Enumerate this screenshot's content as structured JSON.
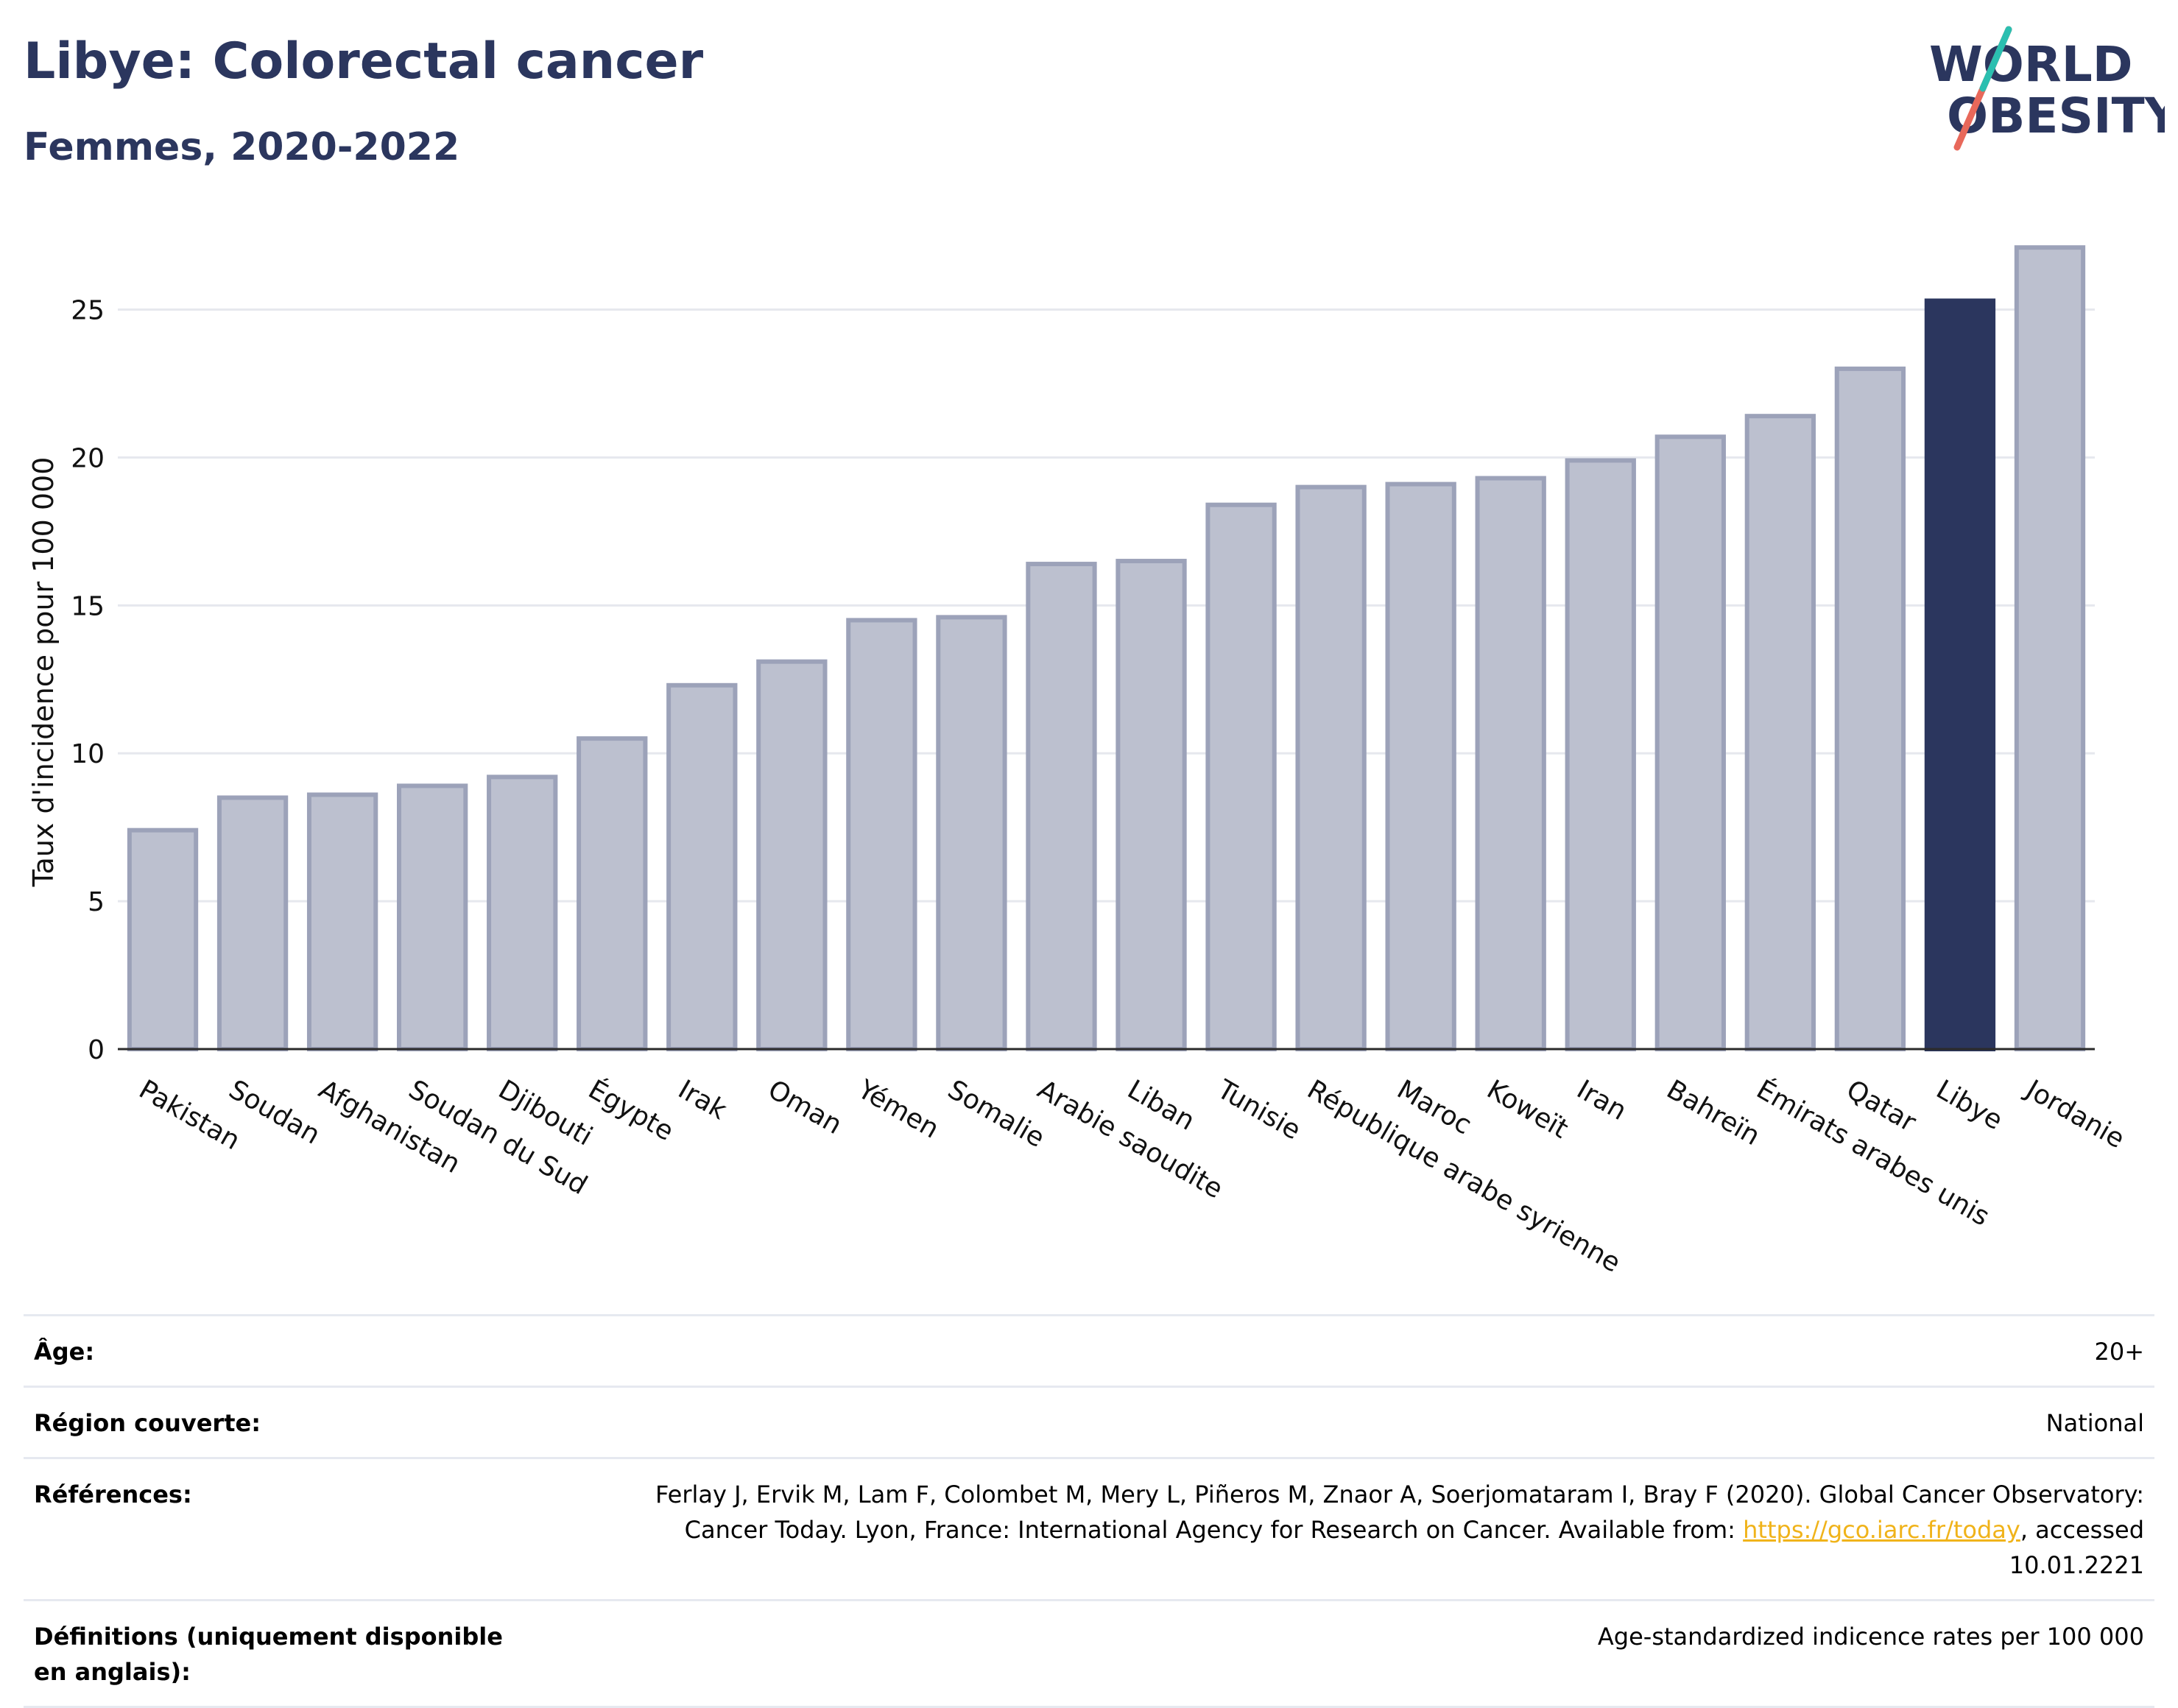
{
  "header": {
    "title": "Libye: Colorectal cancer",
    "subtitle": "Femmes, 2020-2022",
    "logo_line1": "WORLD",
    "logo_line2": "OBESITY"
  },
  "colors": {
    "title": "#2b365e",
    "bar": "#bcc0cf",
    "bar_border": "#9ca2b9",
    "highlight": "#2b365e",
    "link": "#f0b31a"
  },
  "chart_data": {
    "type": "bar",
    "title": "Libye: Colorectal cancer",
    "subtitle": "Femmes, 2020-2022",
    "xlabel": "",
    "ylabel": "Taux d'incidence pour 100 000",
    "ylim": [
      0,
      28
    ],
    "yticks": [
      0,
      5,
      10,
      15,
      20,
      25
    ],
    "grid": true,
    "highlight": "Libye",
    "categories": [
      "Pakistan",
      "Soudan",
      "Afghanistan",
      "Soudan du Sud",
      "Djibouti",
      "Égypte",
      "Irak",
      "Oman",
      "Yémen",
      "Somalie",
      "Arabie saoudite",
      "Liban",
      "Tunisie",
      "République arabe syrienne",
      "Maroc",
      "Koweït",
      "Iran",
      "Bahreïn",
      "Émirats arabes unis",
      "Qatar",
      "Libye",
      "Jordanie"
    ],
    "values": [
      7.4,
      8.5,
      8.6,
      8.9,
      9.2,
      10.5,
      12.3,
      13.1,
      14.5,
      14.6,
      16.4,
      16.5,
      18.4,
      19.0,
      19.1,
      19.3,
      19.9,
      20.7,
      21.4,
      23.0,
      25.3,
      27.1
    ]
  },
  "meta": {
    "age_label": "Âge:",
    "age_value": "20+",
    "region_label": "Région couverte:",
    "region_value": "National",
    "refs_label": "Références:",
    "refs_text": "Ferlay J, Ervik M, Lam F, Colombet M, Mery L, Piñeros M, Znaor A, Soerjomataram I, Bray F (2020). Global Cancer Observatory: Cancer Today. Lyon, France: International Agency for Research on Cancer. Available from: ",
    "refs_link": "https://gco.iarc.fr/today",
    "refs_suffix": ", accessed 10.01.2221",
    "def_label": "Définitions (uniquement disponible en anglais):",
    "def_value": "Age-standardized indicence rates per 100 000"
  }
}
